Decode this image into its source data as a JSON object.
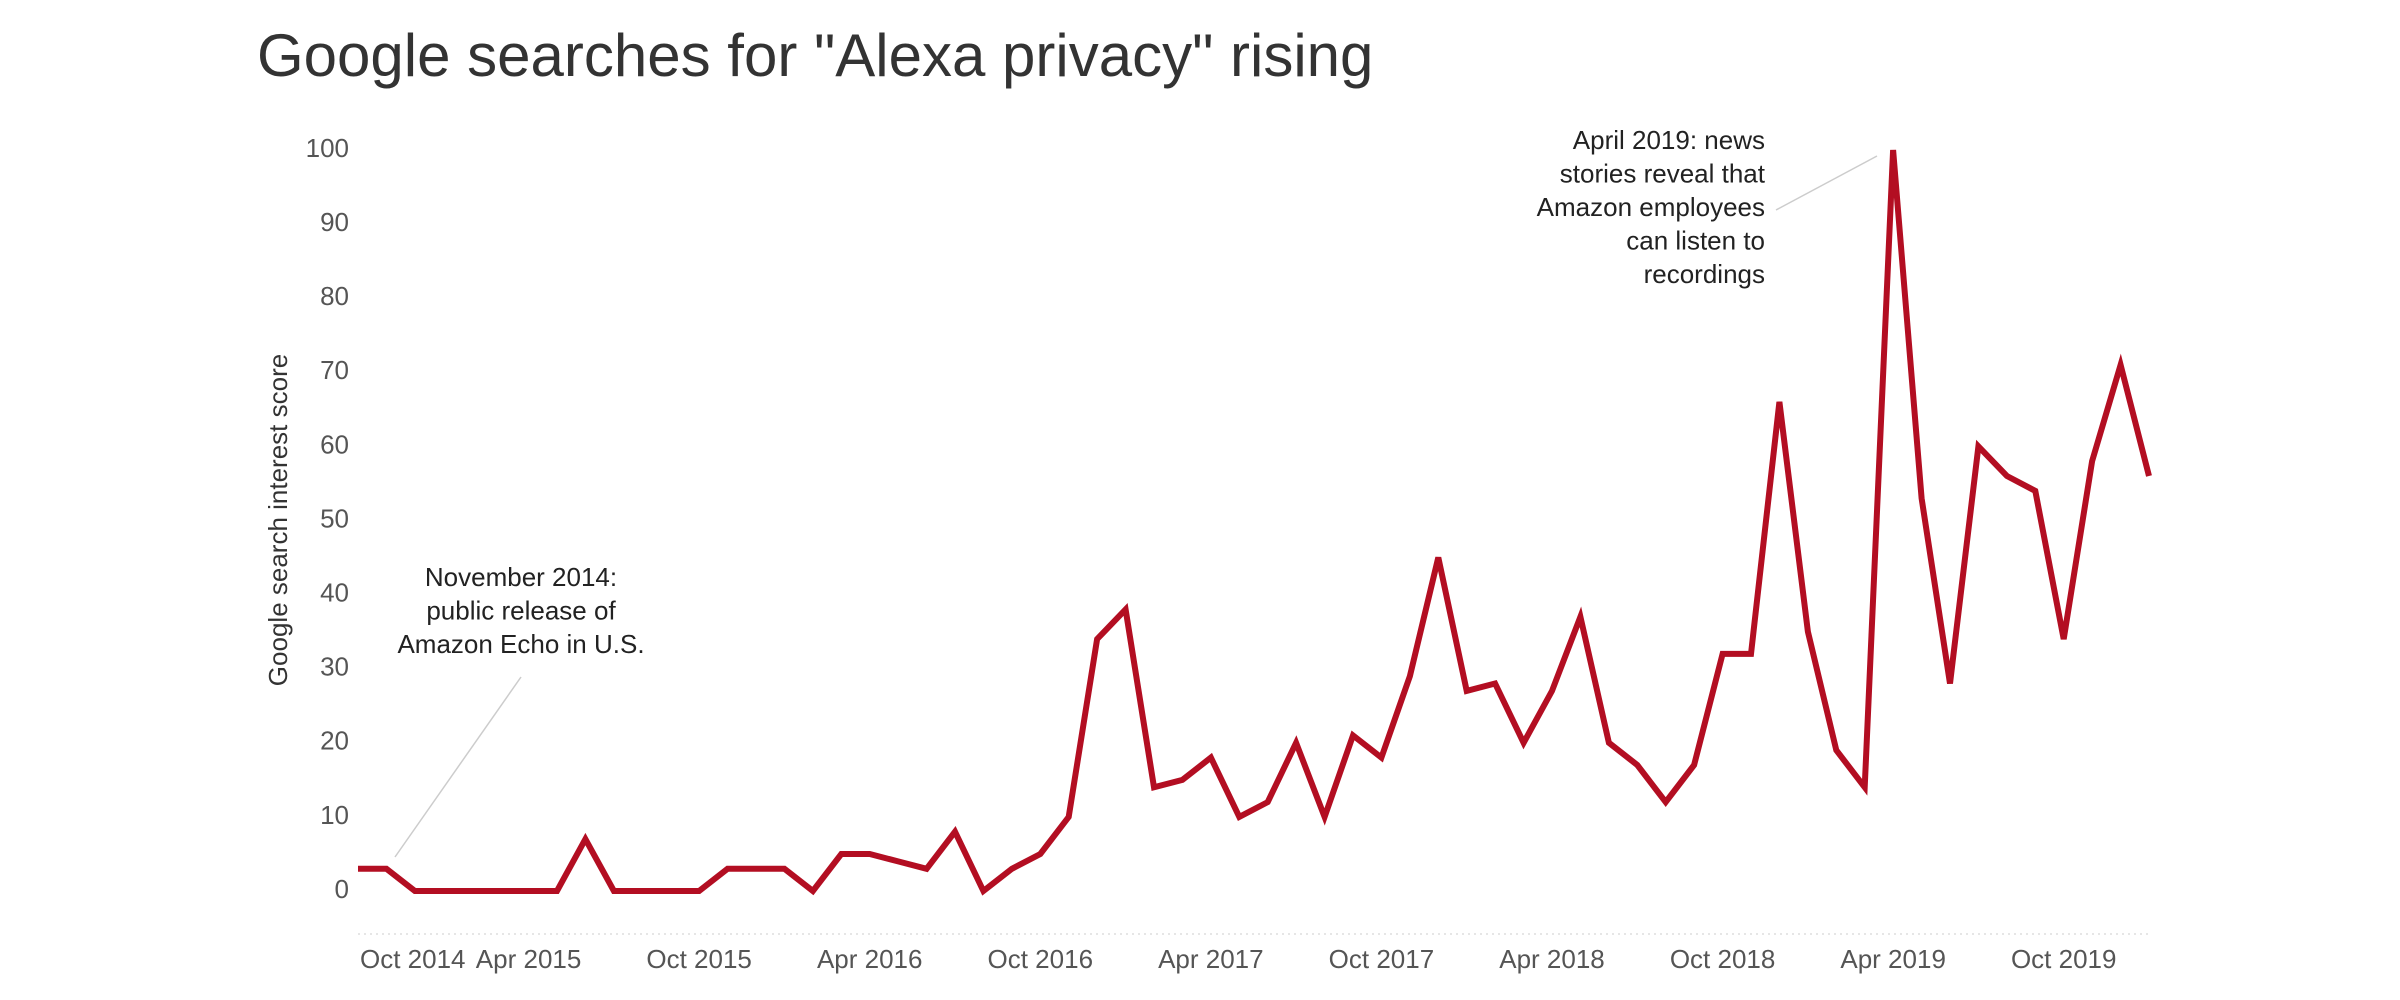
{
  "chart_data": {
    "type": "line",
    "title": "Google searches for \"Alexa privacy\" rising",
    "y_label": "Google search interest score",
    "x": [
      "2014-10",
      "2014-11",
      "2014-12",
      "2015-01",
      "2015-02",
      "2015-03",
      "2015-04",
      "2015-05",
      "2015-06",
      "2015-07",
      "2015-08",
      "2015-09",
      "2015-10",
      "2015-11",
      "2015-12",
      "2016-01",
      "2016-02",
      "2016-03",
      "2016-04",
      "2016-05",
      "2016-06",
      "2016-07",
      "2016-08",
      "2016-09",
      "2016-10",
      "2016-11",
      "2016-12",
      "2017-01",
      "2017-02",
      "2017-03",
      "2017-04",
      "2017-05",
      "2017-06",
      "2017-07",
      "2017-08",
      "2017-09",
      "2017-10",
      "2017-11",
      "2017-12",
      "2018-01",
      "2018-02",
      "2018-03",
      "2018-04",
      "2018-05",
      "2018-06",
      "2018-07",
      "2018-08",
      "2018-09",
      "2018-10",
      "2018-11",
      "2018-12",
      "2019-01",
      "2019-02",
      "2019-03",
      "2019-04",
      "2019-05",
      "2019-06",
      "2019-07",
      "2019-08",
      "2019-09",
      "2019-10",
      "2019-11",
      "2019-12",
      "2020-01"
    ],
    "series": [
      {
        "name": "Alexa privacy",
        "color": "#b30e22",
        "values": [
          3,
          3,
          0,
          0,
          0,
          0,
          0,
          0,
          7,
          0,
          0,
          0,
          0,
          3,
          3,
          3,
          0,
          5,
          5,
          4,
          3,
          8,
          0,
          3,
          5,
          10,
          34,
          38,
          14,
          15,
          18,
          10,
          12,
          20,
          10,
          21,
          18,
          29,
          45,
          27,
          28,
          20,
          27,
          37,
          20,
          17,
          12,
          17,
          32,
          32,
          66,
          35,
          19,
          14,
          100,
          53,
          28,
          60,
          56,
          54,
          34,
          58,
          71,
          56
        ]
      }
    ],
    "xlim": [
      "2014-10",
      "2020-01"
    ],
    "xticks": [
      {
        "value": "2014-10",
        "label": "Oct 2014"
      },
      {
        "value": "2015-04",
        "label": "Apr 2015"
      },
      {
        "value": "2015-10",
        "label": "Oct 2015"
      },
      {
        "value": "2016-04",
        "label": "Apr 2016"
      },
      {
        "value": "2016-10",
        "label": "Oct 2016"
      },
      {
        "value": "2017-04",
        "label": "Apr 2017"
      },
      {
        "value": "2017-10",
        "label": "Oct 2017"
      },
      {
        "value": "2018-04",
        "label": "Apr 2018"
      },
      {
        "value": "2018-10",
        "label": "Oct 2018"
      },
      {
        "value": "2019-04",
        "label": "Apr 2019"
      },
      {
        "value": "2019-10",
        "label": "Oct 2019"
      }
    ],
    "ylim": [
      0,
      100
    ],
    "yticks": [
      0,
      10,
      20,
      30,
      40,
      50,
      60,
      70,
      80,
      90,
      100
    ],
    "grid": false,
    "annotations": [
      {
        "lines": [
          "November 2014:",
          "public release of",
          "Amazon Echo in U.S."
        ]
      },
      {
        "lines": [
          "April 2019: news",
          "stories reveal that",
          "Amazon employees",
          "can listen to",
          "recordings"
        ]
      }
    ]
  }
}
